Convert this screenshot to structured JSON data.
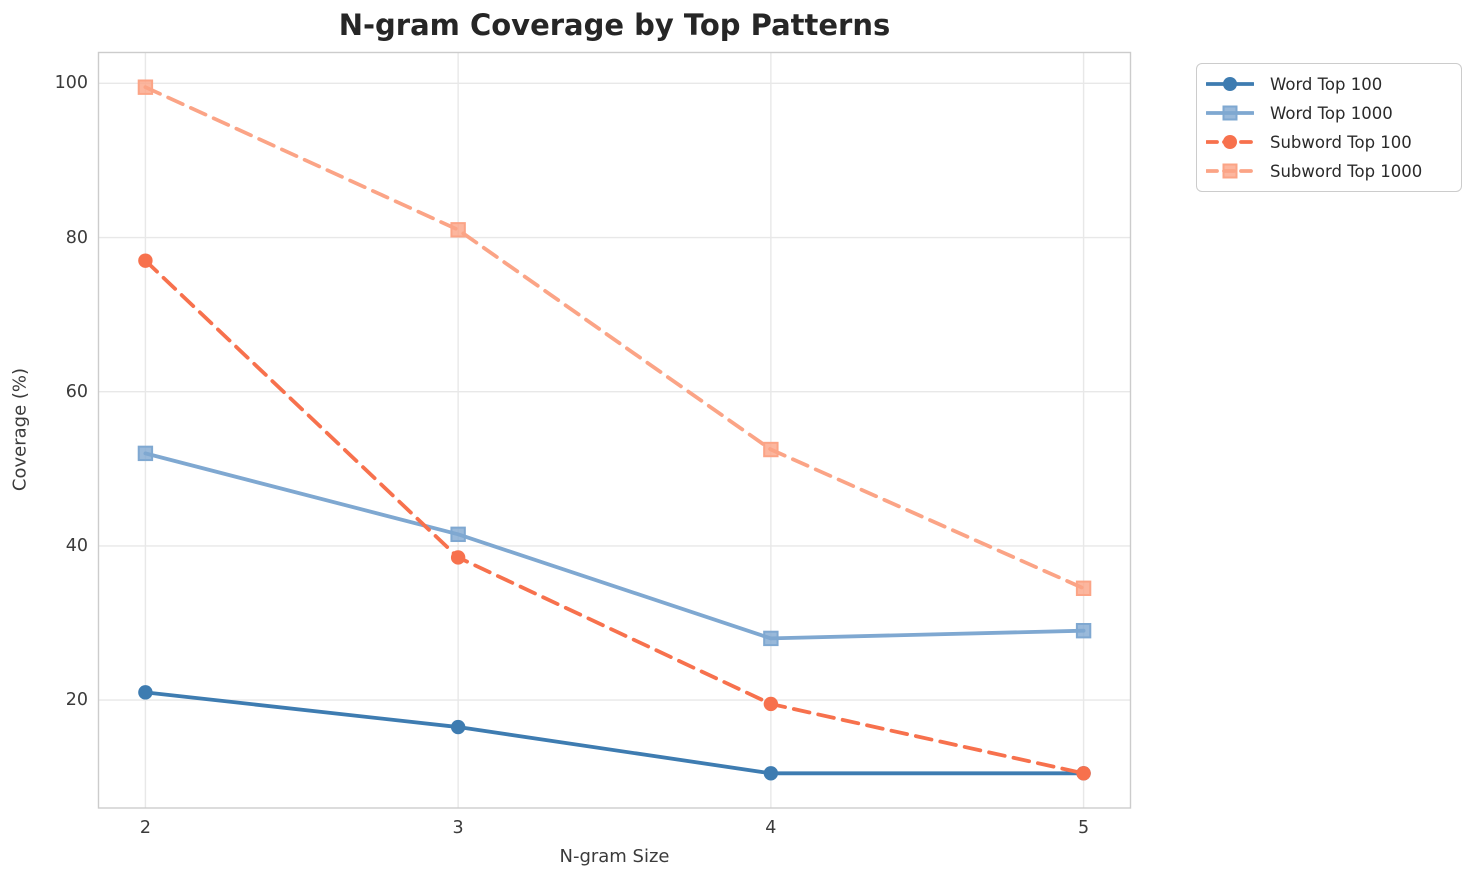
{
  "chart_data": {
    "type": "line",
    "title": "N-gram Coverage by Top Patterns",
    "xlabel": "N-gram Size",
    "ylabel": "Coverage (%)",
    "x": [
      2,
      3,
      4,
      5
    ],
    "xticks": [
      "2",
      "3",
      "4",
      "5"
    ],
    "yticks": [
      20,
      40,
      60,
      80,
      100
    ],
    "xlim": [
      1.85,
      5.15
    ],
    "ylim": [
      6,
      104
    ],
    "grid": true,
    "legend_position": "outside-top-right",
    "series": [
      {
        "name": "Word Top 100",
        "values": [
          21,
          16.5,
          10.5,
          10.5
        ],
        "color": "#3e7cb1",
        "line_style": "solid",
        "marker": "circle"
      },
      {
        "name": "Word Top 1000",
        "values": [
          52,
          41.5,
          28,
          29
        ],
        "color": "#7fa8d1",
        "line_style": "solid",
        "marker": "square"
      },
      {
        "name": "Subword Top 100",
        "values": [
          77,
          38.5,
          19.5,
          10.5
        ],
        "color": "#f7714d",
        "line_style": "dashed",
        "marker": "circle"
      },
      {
        "name": "Subword Top 1000",
        "values": [
          99.5,
          81,
          52.5,
          34.5
        ],
        "color": "#fba486",
        "line_style": "dashed",
        "marker": "square"
      }
    ],
    "style": {
      "grid_color": "#e8e8e8",
      "spine_color": "#cccccc",
      "background_color": "#ffffff",
      "line_width": 3.8,
      "dash_pattern": "16 9",
      "marker_radius": 7.2
    }
  }
}
